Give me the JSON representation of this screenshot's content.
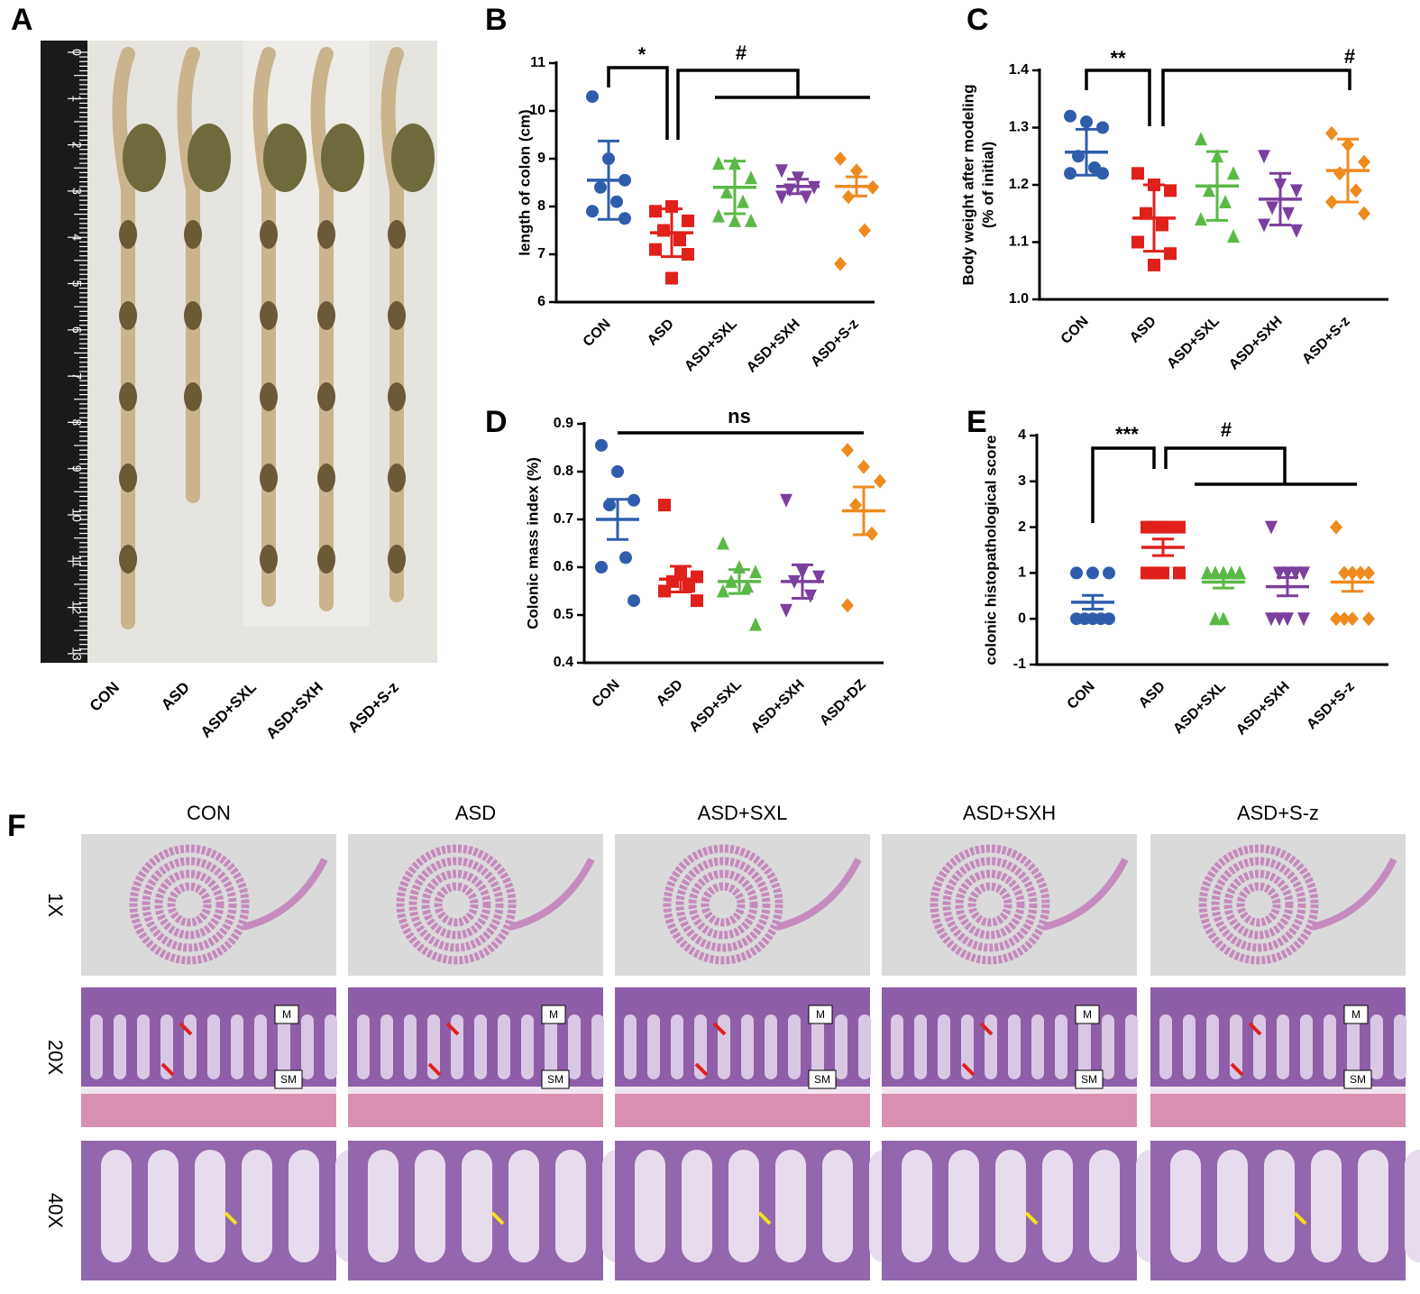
{
  "panels": [
    "A",
    "B",
    "C",
    "D",
    "E",
    "F"
  ],
  "photo": {
    "ruler_numbers": [
      0,
      1,
      2,
      3,
      4,
      5,
      6,
      7,
      8,
      9,
      10,
      11,
      12,
      13
    ],
    "categories": [
      "CON",
      "ASD",
      "ASD+SXL",
      "ASD+SXH",
      "ASD+S-z"
    ]
  },
  "chart_data": [
    {
      "type": "dotplot",
      "ylabel": "length of colon (cm)",
      "categories": [
        "CON",
        "ASD",
        "ASD+SXL",
        "ASD+SXH",
        "ASD+S-z"
      ],
      "colors": [
        "#2f5dab",
        "#e0201b",
        "#5ab946",
        "#7b3f9e",
        "#ef8a1f"
      ],
      "markers": [
        "circle",
        "square",
        "triangle-up",
        "triangle-down",
        "diamond"
      ],
      "points": [
        [
          10.3,
          9.0,
          8.55,
          8.4,
          8.1,
          7.9,
          7.75
        ],
        [
          7.9,
          8.0,
          7.7,
          7.5,
          7.3,
          7.1,
          7.0,
          6.5
        ],
        [
          8.9,
          8.9,
          8.6,
          8.3,
          8.1,
          7.8,
          7.7,
          7.7
        ],
        [
          8.75,
          8.6,
          8.4,
          8.35,
          8.2,
          8.2
        ],
        [
          9.0,
          8.75,
          8.4,
          8.2,
          7.5,
          6.8
        ]
      ],
      "means": [
        8.55,
        7.45,
        8.4,
        8.42,
        8.42
      ],
      "errors": [
        0.82,
        0.5,
        0.55,
        0.15,
        0.2
      ],
      "ylim": [
        6,
        11
      ],
      "yticks": [
        6,
        7,
        8,
        9,
        10,
        11
      ],
      "annotations": [
        "*",
        "#"
      ]
    },
    {
      "type": "dotplot",
      "ylabel": [
        "Body weight after modeling",
        "(% of initial)"
      ],
      "categories": [
        "CON",
        "ASD",
        "ASD+SXL",
        "ASD+SXH",
        "ASD+S-z"
      ],
      "colors": [
        "#2f5dab",
        "#e0201b",
        "#5ab946",
        "#7b3f9e",
        "#ef8a1f"
      ],
      "markers": [
        "circle",
        "square",
        "triangle-up",
        "triangle-down",
        "diamond"
      ],
      "points": [
        [
          1.32,
          1.31,
          1.3,
          1.25,
          1.23,
          1.22,
          1.22
        ],
        [
          1.22,
          1.2,
          1.19,
          1.15,
          1.13,
          1.1,
          1.08,
          1.06
        ],
        [
          1.28,
          1.25,
          1.22,
          1.19,
          1.17,
          1.14,
          1.11
        ],
        [
          1.25,
          1.2,
          1.19,
          1.16,
          1.15,
          1.13,
          1.12
        ],
        [
          1.29,
          1.27,
          1.24,
          1.22,
          1.19,
          1.17,
          1.15
        ]
      ],
      "means": [
        1.257,
        1.142,
        1.198,
        1.175,
        1.225
      ],
      "errors": [
        0.04,
        0.058,
        0.06,
        0.045,
        0.055
      ],
      "ylim": [
        1.0,
        1.4
      ],
      "yticks": [
        {
          "value": 1.0,
          "label": "1.0"
        },
        1.1,
        1.2,
        1.3,
        1.4
      ],
      "annotations": [
        "**",
        "#"
      ]
    },
    {
      "type": "dotplot",
      "ylabel": "Colonic mass index (%)",
      "categories": [
        "CON",
        "ASD",
        "ASD+SXL",
        "ASD+SXH",
        "ASD+DZ"
      ],
      "colors": [
        "#2f5dab",
        "#e0201b",
        "#5ab946",
        "#7b3f9e",
        "#ef8a1f"
      ],
      "markers": [
        "circle",
        "square",
        "triangle-up",
        "triangle-down",
        "diamond"
      ],
      "points": [
        [
          0.855,
          0.8,
          0.74,
          0.73,
          0.62,
          0.6,
          0.53
        ],
        [
          0.73,
          0.59,
          0.58,
          0.57,
          0.56,
          0.55,
          0.53
        ],
        [
          0.65,
          0.6,
          0.59,
          0.57,
          0.56,
          0.55,
          0.48
        ],
        [
          0.74,
          0.59,
          0.58,
          0.57,
          0.54,
          0.51
        ],
        [
          0.845,
          0.81,
          0.78,
          0.73,
          0.67,
          0.52
        ]
      ],
      "means": [
        0.7,
        0.575,
        0.57,
        0.57,
        0.718
      ],
      "errors": [
        0.042,
        0.027,
        0.025,
        0.035,
        0.05
      ],
      "ylim": [
        0.4,
        0.9
      ],
      "yticks": [
        0.4,
        0.5,
        0.6,
        0.7,
        0.8,
        0.9
      ],
      "annotations": [
        "ns"
      ]
    },
    {
      "type": "dotplot",
      "ylabel": "colonic histopathological score",
      "categories": [
        "CON",
        "ASD",
        "ASD+SXL",
        "ASD+SXH",
        "ASD+S-z"
      ],
      "colors": [
        "#2f5dab",
        "#e0201b",
        "#5ab946",
        "#7b3f9e",
        "#ef8a1f"
      ],
      "markers": [
        "circle",
        "square",
        "triangle-up",
        "triangle-down",
        "diamond"
      ],
      "points": [
        [
          1,
          1,
          1,
          0,
          0,
          0,
          0,
          0
        ],
        [
          2,
          2,
          2,
          2,
          2,
          1,
          1,
          1,
          1
        ],
        [
          1,
          1,
          1,
          1,
          1,
          1,
          1,
          0,
          0
        ],
        [
          2,
          1,
          1,
          1,
          1,
          0,
          0,
          0,
          0
        ],
        [
          2,
          1,
          1,
          1,
          1,
          0,
          0,
          0,
          0
        ]
      ],
      "means": [
        0.36,
        1.56,
        0.8,
        0.7,
        0.8
      ],
      "errors": [
        0.15,
        0.18,
        0.13,
        0.2,
        0.2
      ],
      "ylim": [
        -1,
        4
      ],
      "yticks": [
        -1,
        0,
        1,
        2,
        3,
        4
      ],
      "annotations": [
        "***",
        "#"
      ]
    }
  ],
  "histology": {
    "columns": [
      "CON",
      "ASD",
      "ASD+SXL",
      "ASD+SXH",
      "ASD+S-z"
    ],
    "rows": [
      "1X",
      "20X",
      "40X"
    ],
    "markers": [
      "M",
      "SM"
    ]
  }
}
